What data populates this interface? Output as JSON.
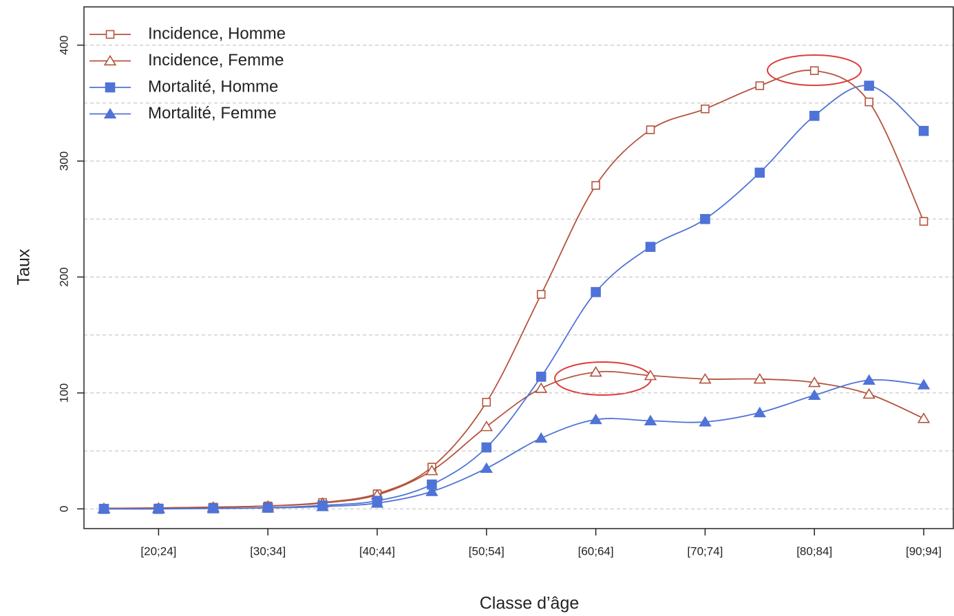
{
  "chart_data": {
    "type": "line",
    "x_label": "Classe d’âge",
    "y_label": "Taux",
    "categories": [
      null,
      "[20;24]",
      null,
      "[30;34]",
      null,
      "[40;44]",
      null,
      "[50;54]",
      null,
      "[60;64]",
      null,
      "[70;74]",
      null,
      "[80;84]",
      null,
      "[90;94]"
    ],
    "series": [
      {
        "name": "Incidence, Homme",
        "color": "#b5533c",
        "marker": "square-open",
        "values": [
          0.5,
          0.8,
          1.5,
          2.5,
          5.5,
          13,
          36,
          92,
          185,
          279,
          327,
          345,
          365,
          378,
          351,
          248
        ]
      },
      {
        "name": "Incidence, Femme",
        "color": "#b5533c",
        "marker": "triangle-open",
        "values": [
          0.5,
          0.8,
          1.5,
          2.5,
          5,
          12,
          33,
          71,
          104,
          118,
          115,
          112,
          112,
          109,
          99,
          78
        ]
      },
      {
        "name": "Mortalité, Homme",
        "color": "#4f73d6",
        "marker": "square-filled",
        "values": [
          0,
          0,
          0.5,
          1,
          3,
          7,
          21,
          53,
          114,
          187,
          226,
          250,
          290,
          339,
          365,
          326
        ]
      },
      {
        "name": "Mortalité, Femme",
        "color": "#4f73d6",
        "marker": "triangle-filled",
        "values": [
          0,
          0,
          0.3,
          0.8,
          2,
          5,
          15,
          35,
          61,
          77,
          76,
          75,
          83,
          98,
          111,
          107
        ]
      }
    ],
    "ylim": [
      -17,
      433
    ],
    "yticks": [
      0,
      100,
      200,
      300,
      400
    ],
    "ygrid": [
      0,
      50,
      100,
      150,
      200,
      250,
      300,
      350,
      400
    ],
    "grid": true,
    "legend": "top-left"
  }
}
